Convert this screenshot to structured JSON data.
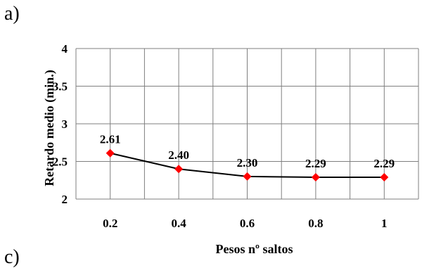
{
  "figure": {
    "panel_label": "a)",
    "next_panel_label": "c)"
  },
  "chart_data": {
    "type": "line",
    "title": "",
    "xlabel": "Pesos nº saltos",
    "ylabel": "Retardo medio (min.)",
    "x": [
      0.2,
      0.4,
      0.6,
      0.8,
      1
    ],
    "x_tick_labels": [
      "0.2",
      "0.4",
      "0.6",
      "0.8",
      "1"
    ],
    "xlim": [
      0.1,
      1.1
    ],
    "ylim": [
      2,
      4
    ],
    "y_ticks": [
      2,
      2.5,
      3,
      3.5,
      4
    ],
    "y_tick_labels": [
      "2",
      "2.5",
      "3",
      "3.5",
      "4"
    ],
    "series": [
      {
        "values": [
          2.61,
          2.4,
          2.3,
          2.29,
          2.29
        ],
        "data_labels": [
          "2.61",
          "2.40",
          "2.30",
          "2.29",
          "2.29"
        ]
      }
    ],
    "grid": true,
    "legend": false,
    "colors": {
      "line": "#000000",
      "marker": "#ff0000",
      "grid": "#7f7f7f"
    }
  }
}
